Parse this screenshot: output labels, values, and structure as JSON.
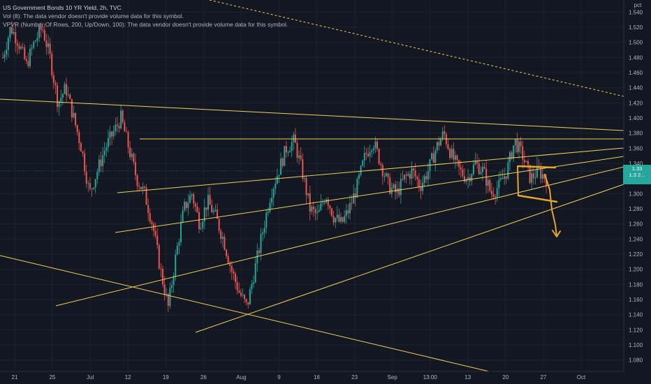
{
  "legend": {
    "symbol": "US Government Bonds 10 YR Yield, 2h, TVC",
    "vol": "Vol (8): The data vendor doesn't provide volume data for this symbol.",
    "vpvr": "VPVR (Number Of Rows, 200, Up/Down, 100): The data vendor doesn't provide volume data for this symbol."
  },
  "price_axis": {
    "unit": "pct",
    "current_price": "1.33",
    "current_sub": "1.3 2..."
  },
  "colors": {
    "background": "#131722",
    "up": "#26a69a",
    "down": "#ef5350",
    "trendline": "#f0d05a",
    "dashed": "#f0d05a",
    "drawing": "#e3a82b"
  },
  "chart_data": {
    "type": "candlestick",
    "title": "US Government Bonds 10 YR Yield, 2h, TVC",
    "ylabel": "pct",
    "ylim": [
      1.065,
      1.556
    ],
    "yticks": [
      1.54,
      1.52,
      1.5,
      1.48,
      1.46,
      1.44,
      1.42,
      1.4,
      1.38,
      1.36,
      1.34,
      1.32,
      1.3,
      1.28,
      1.26,
      1.24,
      1.22,
      1.2,
      1.18,
      1.16,
      1.14,
      1.12,
      1.1,
      1.08
    ],
    "xticks": [
      "21",
      "25",
      "Jul",
      "12",
      "19",
      "26",
      "Aug",
      "9",
      "16",
      "23",
      "Sep",
      "13:00",
      "13",
      "20",
      "27",
      "Oct"
    ],
    "price_path": [
      1.48,
      1.52,
      1.5,
      1.47,
      1.5,
      1.52,
      1.48,
      1.42,
      1.44,
      1.4,
      1.36,
      1.3,
      1.33,
      1.36,
      1.38,
      1.4,
      1.36,
      1.32,
      1.3,
      1.26,
      1.2,
      1.15,
      1.22,
      1.28,
      1.3,
      1.26,
      1.29,
      1.27,
      1.24,
      1.2,
      1.17,
      1.15,
      1.2,
      1.25,
      1.3,
      1.33,
      1.36,
      1.37,
      1.33,
      1.28,
      1.27,
      1.3,
      1.27,
      1.26,
      1.28,
      1.31,
      1.35,
      1.37,
      1.34,
      1.31,
      1.3,
      1.32,
      1.33,
      1.31,
      1.33,
      1.36,
      1.38,
      1.35,
      1.33,
      1.32,
      1.34,
      1.33,
      1.3,
      1.31,
      1.33,
      1.37,
      1.35,
      1.32,
      1.33,
      1.32
    ],
    "grid": true,
    "current_value": 1.33
  }
}
